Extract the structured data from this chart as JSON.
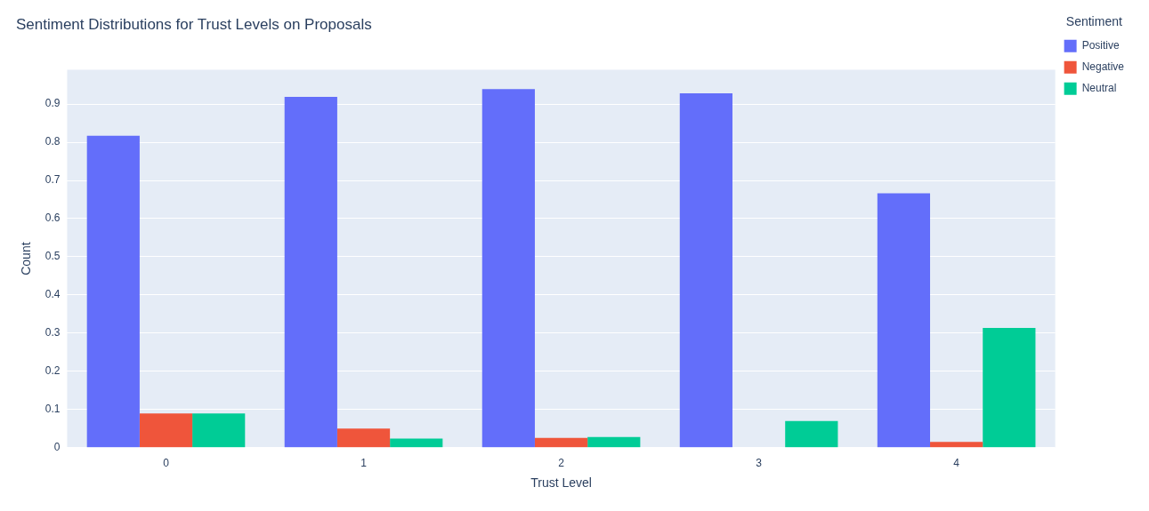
{
  "chart_data": {
    "type": "bar",
    "title": "Sentiment Distributions for Trust Levels on Proposals",
    "xlabel": "Trust Level",
    "ylabel": "Count",
    "legend_title": "Sentiment",
    "categories": [
      "0",
      "1",
      "2",
      "3",
      "4"
    ],
    "series": [
      {
        "name": "Positive",
        "color": "#636efa",
        "values": [
          0.817,
          0.919,
          0.939,
          0.928,
          0.666
        ]
      },
      {
        "name": "Negative",
        "color": "#ef553b",
        "values": [
          0.09,
          0.05,
          0.026,
          0,
          0.015
        ]
      },
      {
        "name": "Neutral",
        "color": "#00cc96",
        "values": [
          0.09,
          0.024,
          0.028,
          0.07,
          0.314
        ]
      }
    ],
    "ylim": [
      0,
      0.99
    ],
    "yticks": [
      0,
      0.1,
      0.2,
      0.3,
      0.4,
      0.5,
      0.6,
      0.7,
      0.8,
      0.9
    ],
    "grid": "y",
    "legend": "top right"
  }
}
